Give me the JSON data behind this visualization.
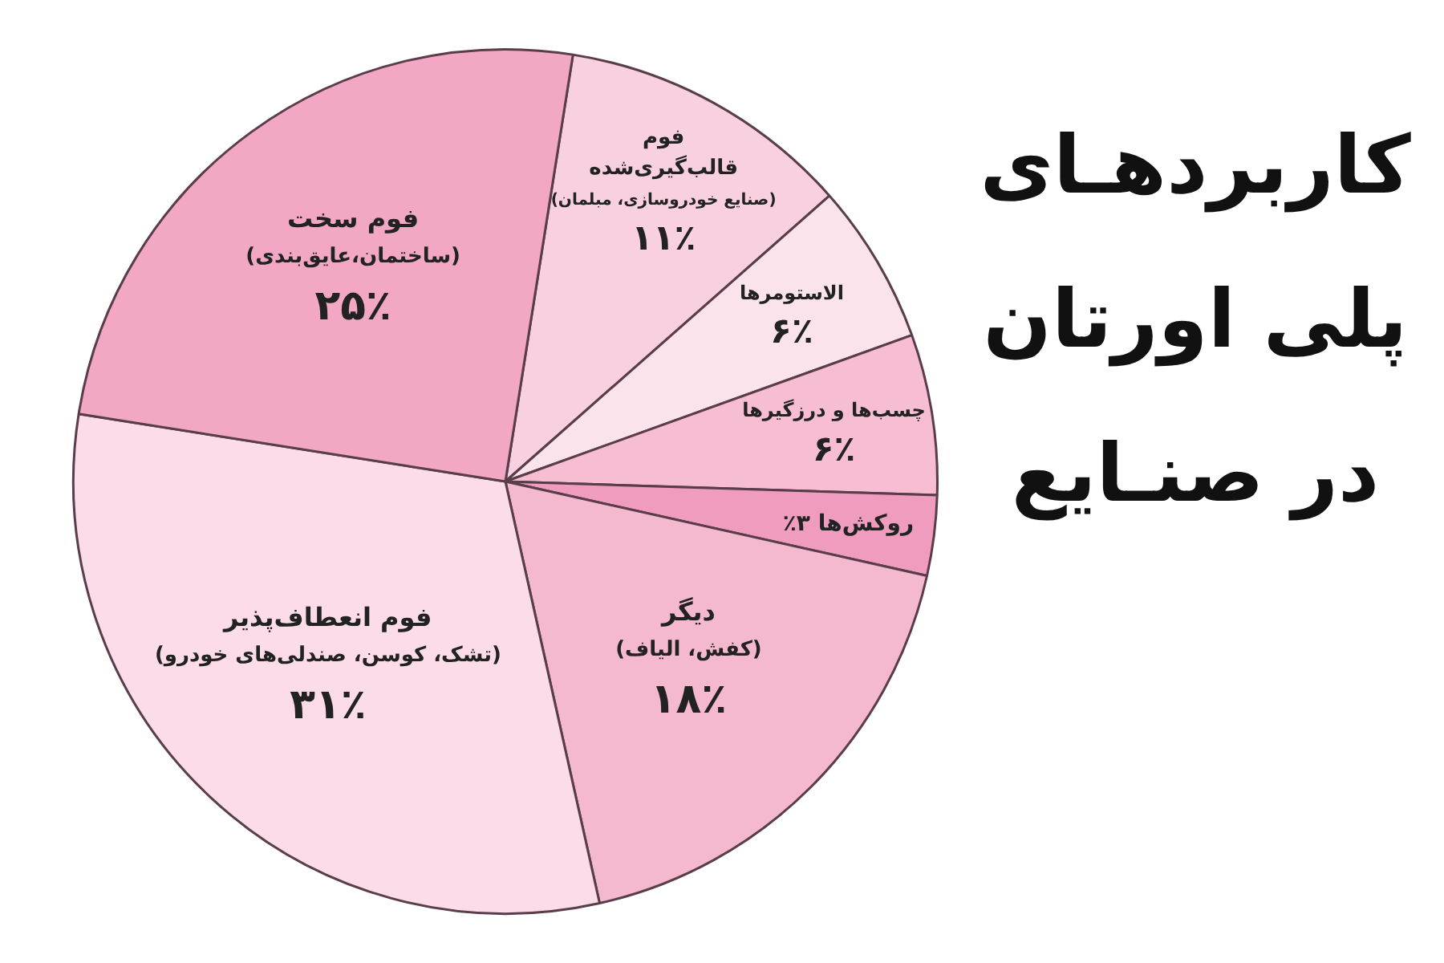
{
  "chart_data": {
    "type": "pie",
    "title": "کاربردهـای پلی اورتان در صنـایع",
    "categories": [
      "فوم\nقالب‌گیری‌شده\n(صنایع خودروسازی، مبلمان)",
      "الاستومرها",
      "چسب‌ها و درزگیرها",
      "روکش‌ها",
      "دیگر\n(کفش، الیاف)",
      "فوم انعطاف‌پذیر\n(تشک، کوسن، صندلی‌های خودرو)",
      "فوم سخت\n(ساختمان،عایق‌بندی)"
    ],
    "values": [
      11,
      6,
      6,
      3,
      18,
      31,
      25
    ],
    "value_labels": [
      "۱۱٪",
      "۶٪",
      "۶٪",
      "۳٪",
      "۱۸٪",
      "۳۱٪",
      "۲۵٪"
    ],
    "colors": [
      "#f8d0e0",
      "#fbe3ec",
      "#f6bdd3",
      "#ef9cbf",
      "#f4b8cf",
      "#fbdce8",
      "#f2a8c4"
    ],
    "legend": false
  }
}
